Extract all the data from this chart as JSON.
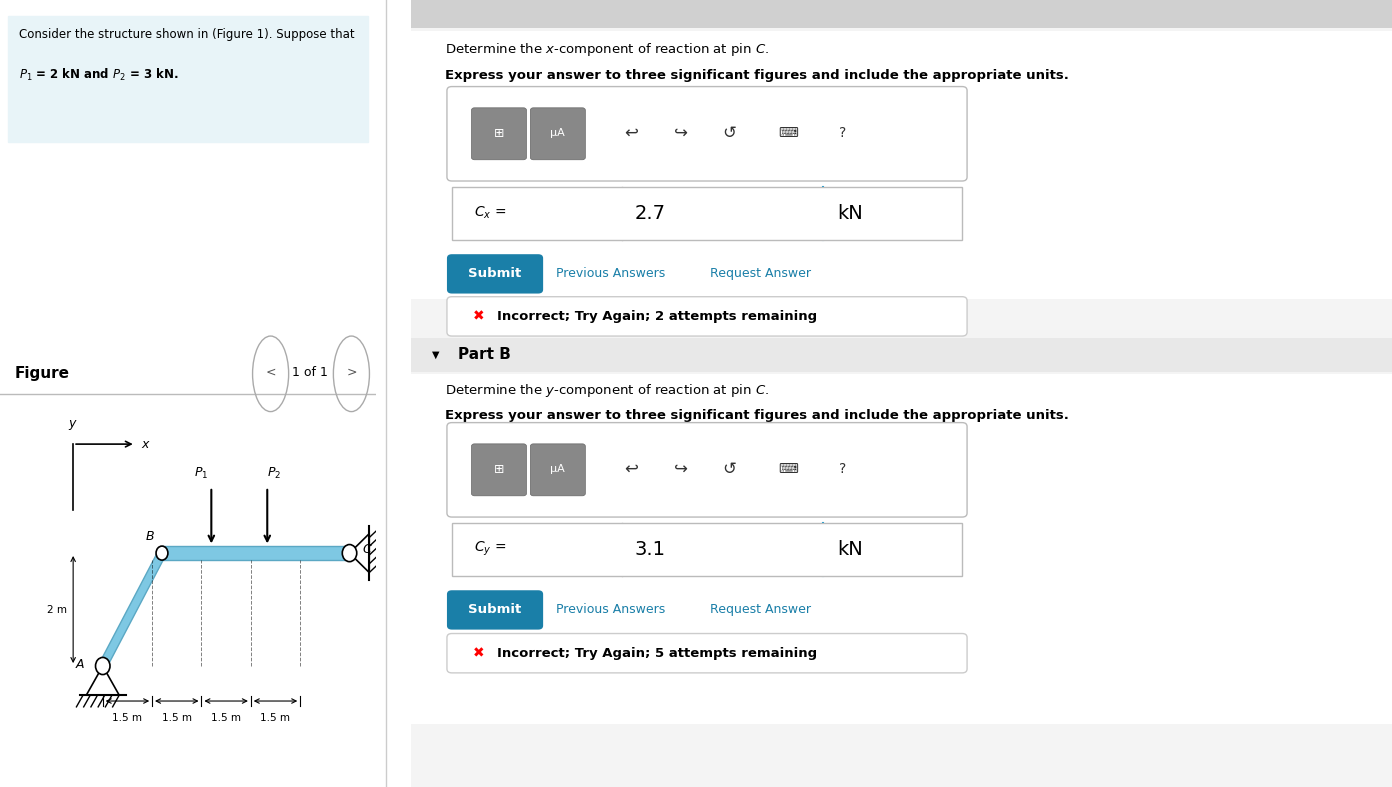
{
  "bg_color": "#ffffff",
  "left_panel_bg": "#e8f4f8",
  "problem_text_line1": "Consider the structure shown in (Figure 1). Suppose that",
  "problem_text_line2": "$P_1$ = 2 kN and $P_2$ = 3 kN.",
  "figure_label": "Figure",
  "figure_nav": "1 of 1",
  "part_a_label": "Determine the x-component of reaction at pin C.",
  "part_a_bold": "Express your answer to three significant figures and include the appropriate units.",
  "cx_label": "$C_x$ =",
  "cx_value": "2.7",
  "cx_unit": "kN",
  "cy_label": "$C_y$ =",
  "cy_value": "3.1",
  "cy_unit": "kN",
  "part_b_label": "Determine the y-component of reaction at pin C.",
  "part_b_bold": "Express your answer to three significant figures and include the appropriate units.",
  "submit_color": "#1a7fa8",
  "submit_text": "Submit",
  "prev_ans_text": "Previous Answers",
  "req_ans_text": "Request Answer",
  "incorrect_text_a": "Incorrect; Try Again; 2 attempts remaining",
  "incorrect_text_b": "Incorrect; Try Again; 5 attempts remaining",
  "part_b_section": "Part B",
  "separator_color": "#cccccc",
  "link_color": "#1a7fa8",
  "toolbar_bg": "#888888",
  "beam_color": "#7ec8e3",
  "beam_dark": "#5ba8c4"
}
